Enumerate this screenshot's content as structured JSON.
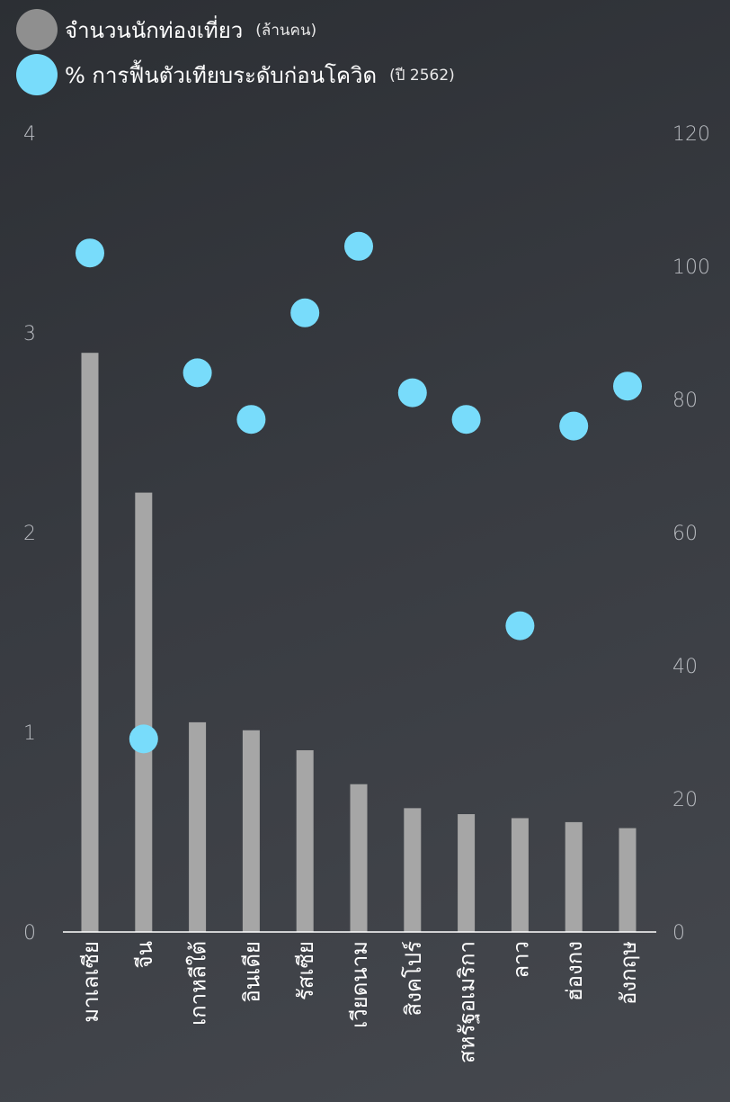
{
  "legend": {
    "series1_label": "จำนวนนักท่องเที่ยว",
    "series1_unit": "(ล้านคน)",
    "series2_label": "% การฟื้นตัวเทียบระดับก่อนโควิด",
    "series2_unit": "(ปี 2562)"
  },
  "colors": {
    "bar": "#a6a6a6",
    "dot": "#78dcfb",
    "legend_bar": "#8f8f8f",
    "axis": "#ffffff",
    "tick_text": "#b8bbc0"
  },
  "chart_data": {
    "type": "bar",
    "categories": [
      "มาเลเซีย",
      "จีน",
      "เกาหลีใต้",
      "อินเดีย",
      "รัสเซีย",
      "เวียดนาม",
      "สิงคโปร์",
      "สหรัฐอเมริกา",
      "ลาว",
      "ฮ่องกง",
      "อังกฤษ"
    ],
    "series": [
      {
        "name": "จำนวนนักท่องเที่ยว",
        "axis": "left",
        "type": "bar",
        "values": [
          2.9,
          2.2,
          1.05,
          1.01,
          0.91,
          0.74,
          0.62,
          0.59,
          0.57,
          0.55,
          0.52
        ]
      },
      {
        "name": "% การฟื้นตัวเทียบระดับก่อนโควิด",
        "axis": "right",
        "type": "scatter",
        "values": [
          102,
          29,
          84,
          77,
          93,
          103,
          81,
          77,
          46,
          76,
          82
        ]
      }
    ],
    "y_left": {
      "ticks": [
        0,
        1,
        2,
        3,
        4
      ],
      "range": [
        0,
        4
      ]
    },
    "y_right": {
      "ticks": [
        0,
        20,
        40,
        60,
        80,
        100,
        120
      ],
      "range": [
        0,
        120
      ]
    },
    "grid": false,
    "legend_position": "top-left"
  }
}
